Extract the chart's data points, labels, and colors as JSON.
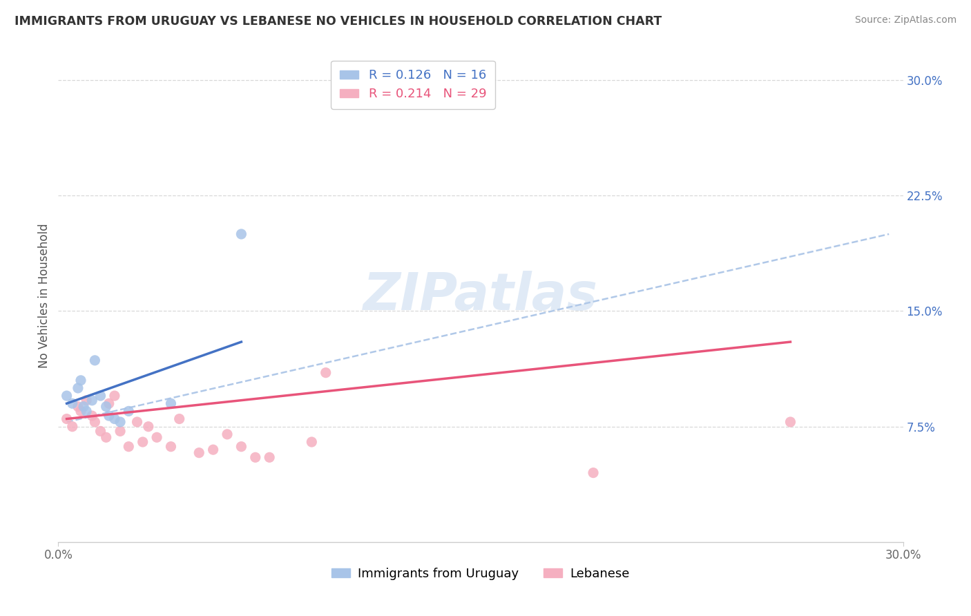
{
  "title": "IMMIGRANTS FROM URUGUAY VS LEBANESE NO VEHICLES IN HOUSEHOLD CORRELATION CHART",
  "source": "Source: ZipAtlas.com",
  "ylabel": "No Vehicles in Household",
  "watermark": "ZIPatlas",
  "xlim": [
    0.0,
    0.3
  ],
  "ylim": [
    0.0,
    0.32
  ],
  "uruguay_R": 0.126,
  "uruguay_N": 16,
  "lebanese_R": 0.214,
  "lebanese_N": 29,
  "uruguay_color": "#a8c4e8",
  "lebanese_color": "#f5afc0",
  "uruguay_line_color": "#4472c4",
  "lebanese_line_color": "#e8547a",
  "trendline_color": "#b0c8e8",
  "background_color": "#ffffff",
  "grid_color": "#d8d8d8",
  "ytick_positions": [
    0.075,
    0.15,
    0.225,
    0.3
  ],
  "ytick_labels": [
    "7.5%",
    "15.0%",
    "22.5%",
    "30.0%"
  ],
  "uruguay_scatter_x": [
    0.003,
    0.005,
    0.007,
    0.008,
    0.009,
    0.01,
    0.012,
    0.013,
    0.015,
    0.017,
    0.018,
    0.02,
    0.022,
    0.025,
    0.04,
    0.065
  ],
  "uruguay_scatter_y": [
    0.095,
    0.09,
    0.1,
    0.105,
    0.088,
    0.085,
    0.092,
    0.118,
    0.095,
    0.088,
    0.082,
    0.08,
    0.078,
    0.085,
    0.09,
    0.2
  ],
  "lebanese_scatter_x": [
    0.003,
    0.005,
    0.007,
    0.008,
    0.01,
    0.012,
    0.013,
    0.015,
    0.017,
    0.018,
    0.02,
    0.022,
    0.025,
    0.028,
    0.03,
    0.032,
    0.035,
    0.04,
    0.043,
    0.05,
    0.055,
    0.06,
    0.065,
    0.07,
    0.075,
    0.09,
    0.095,
    0.19,
    0.26
  ],
  "lebanese_scatter_y": [
    0.08,
    0.075,
    0.088,
    0.085,
    0.092,
    0.082,
    0.078,
    0.072,
    0.068,
    0.09,
    0.095,
    0.072,
    0.062,
    0.078,
    0.065,
    0.075,
    0.068,
    0.062,
    0.08,
    0.058,
    0.06,
    0.07,
    0.062,
    0.055,
    0.055,
    0.065,
    0.11,
    0.045,
    0.078
  ],
  "uruguay_line_x": [
    0.003,
    0.065
  ],
  "uruguay_line_y": [
    0.09,
    0.13
  ],
  "lebanese_line_x": [
    0.003,
    0.26
  ],
  "lebanese_line_y": [
    0.08,
    0.13
  ],
  "dashed_line_x": [
    0.003,
    0.295
  ],
  "dashed_line_y": [
    0.078,
    0.2
  ]
}
